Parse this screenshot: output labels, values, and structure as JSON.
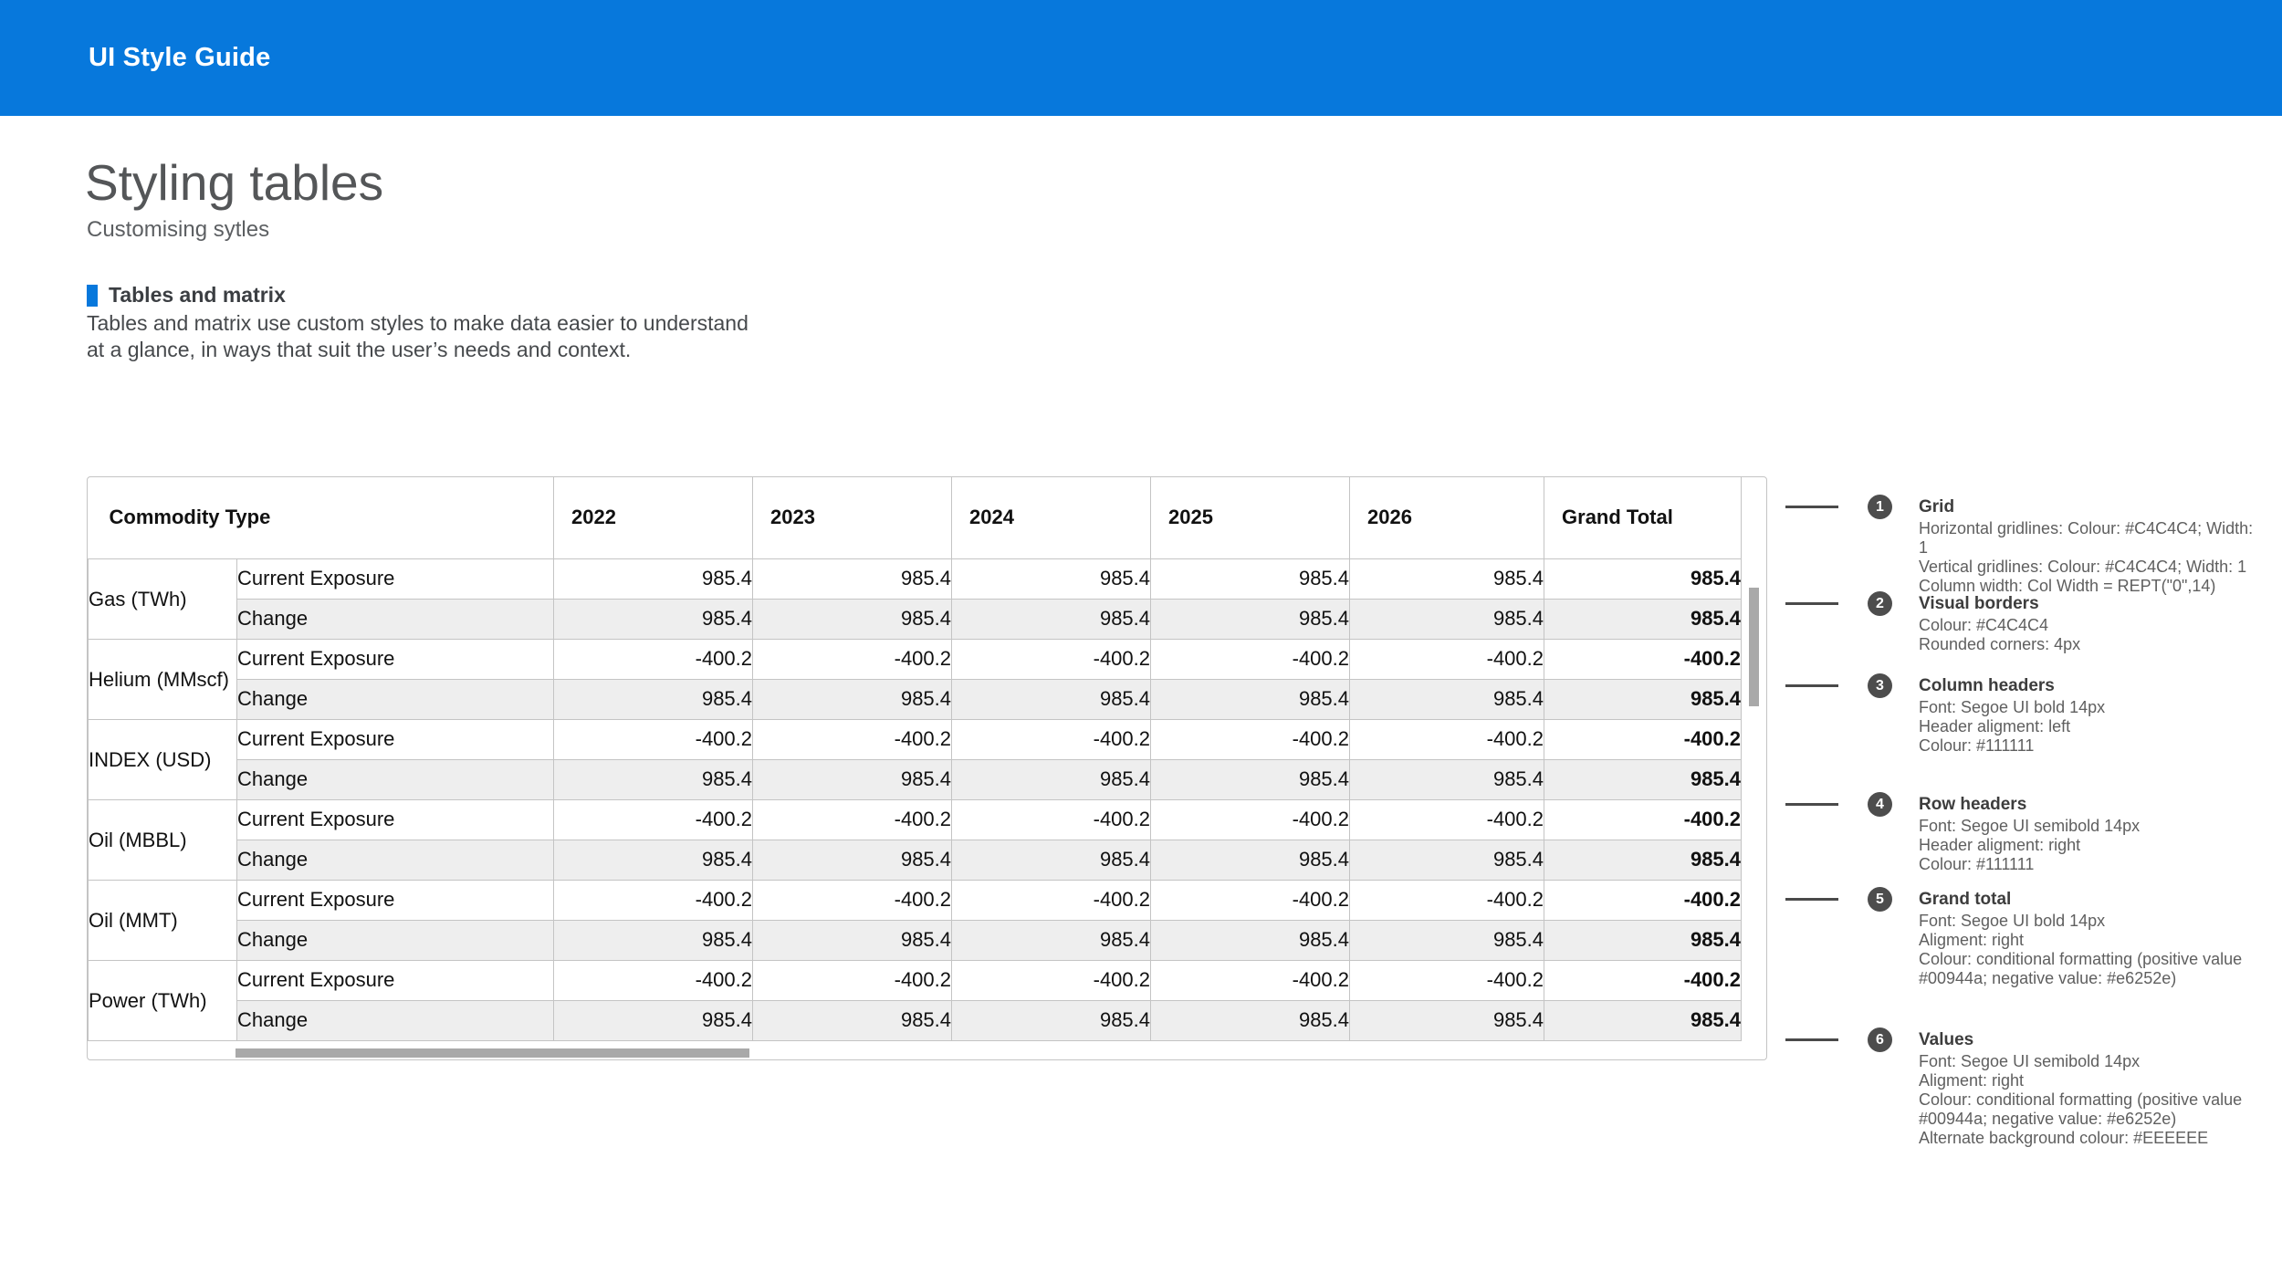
{
  "app": {
    "bar_title": "UI Style Guide"
  },
  "page": {
    "title": "Styling tables",
    "subtitle": "Customising sytles"
  },
  "section": {
    "heading": "Tables and matrix",
    "body": "Tables and matrix use custom styles to make data easier to understand at a glance, in ways that suit the user’s needs and context."
  },
  "colors": {
    "header_bar_blue": "#0778dc",
    "gridline": "#C4C4C4",
    "positive_value": "#00944a",
    "negative_value": "#e6252e",
    "alternate_row_background": "#EEEEEE",
    "header_text": "#111111"
  },
  "table": {
    "columns": [
      "Commodity Type",
      "2022",
      "2023",
      "2024",
      "2025",
      "2026",
      "Grand Total"
    ],
    "groups": [
      {
        "name": "Gas (TWh)",
        "rows": [
          {
            "metric": "Current Exposure",
            "values": [
              "985.4",
              "985.4",
              "985.4",
              "985.4",
              "985.4"
            ],
            "grand_total": "985.4",
            "negative": false
          },
          {
            "metric": "Change",
            "values": [
              "985.4",
              "985.4",
              "985.4",
              "985.4",
              "985.4"
            ],
            "grand_total": "985.4",
            "negative": false
          }
        ]
      },
      {
        "name": "Helium (MMscf)",
        "rows": [
          {
            "metric": "Current Exposure",
            "values": [
              "-400.2",
              "-400.2",
              "-400.2",
              "-400.2",
              "-400.2"
            ],
            "grand_total": "-400.2",
            "negative": true
          },
          {
            "metric": "Change",
            "values": [
              "985.4",
              "985.4",
              "985.4",
              "985.4",
              "985.4"
            ],
            "grand_total": "985.4",
            "negative": false
          }
        ]
      },
      {
        "name": "INDEX (USD)",
        "rows": [
          {
            "metric": "Current Exposure",
            "values": [
              "-400.2",
              "-400.2",
              "-400.2",
              "-400.2",
              "-400.2"
            ],
            "grand_total": "-400.2",
            "negative": true
          },
          {
            "metric": "Change",
            "values": [
              "985.4",
              "985.4",
              "985.4",
              "985.4",
              "985.4"
            ],
            "grand_total": "985.4",
            "negative": false
          }
        ]
      },
      {
        "name": "Oil (MBBL)",
        "rows": [
          {
            "metric": "Current Exposure",
            "values": [
              "-400.2",
              "-400.2",
              "-400.2",
              "-400.2",
              "-400.2"
            ],
            "grand_total": "-400.2",
            "negative": true
          },
          {
            "metric": "Change",
            "values": [
              "985.4",
              "985.4",
              "985.4",
              "985.4",
              "985.4"
            ],
            "grand_total": "985.4",
            "negative": false
          }
        ]
      },
      {
        "name": "Oil (MMT)",
        "rows": [
          {
            "metric": "Current Exposure",
            "values": [
              "-400.2",
              "-400.2",
              "-400.2",
              "-400.2",
              "-400.2"
            ],
            "grand_total": "-400.2",
            "negative": true
          },
          {
            "metric": "Change",
            "values": [
              "985.4",
              "985.4",
              "985.4",
              "985.4",
              "985.4"
            ],
            "grand_total": "985.4",
            "negative": false
          }
        ]
      },
      {
        "name": "Power (TWh)",
        "rows": [
          {
            "metric": "Current Exposure",
            "values": [
              "-400.2",
              "-400.2",
              "-400.2",
              "-400.2",
              "-400.2"
            ],
            "grand_total": "-400.2",
            "negative": true
          },
          {
            "metric": "Change",
            "values": [
              "985.4",
              "985.4",
              "985.4",
              "985.4",
              "985.4"
            ],
            "grand_total": "985.4",
            "negative": false
          }
        ]
      }
    ]
  },
  "annotations": [
    {
      "number": "1",
      "title": "Grid",
      "lines": [
        "Horizontal gridlines: Colour: #C4C4C4; Width: 1",
        "Vertical gridlines: Colour: #C4C4C4; Width: 1",
        "Column width: Col Width = REPT(\"0\",14)"
      ]
    },
    {
      "number": "2",
      "title": "Visual borders",
      "lines": [
        "Colour: #C4C4C4",
        "Rounded corners: 4px"
      ]
    },
    {
      "number": "3",
      "title": "Column headers",
      "lines": [
        "Font: Segoe UI bold 14px",
        "Header aligment: left",
        "Colour: #111111"
      ]
    },
    {
      "number": "4",
      "title": "Row headers",
      "lines": [
        "Font: Segoe UI semibold 14px",
        "Header aligment: right",
        "Colour: #111111"
      ]
    },
    {
      "number": "5",
      "title": "Grand total",
      "lines": [
        "Font: Segoe UI bold 14px",
        "Aligment: right",
        "Colour: conditional formatting (positive value",
        "#00944a; negative value: #e6252e)"
      ]
    },
    {
      "number": "6",
      "title": "Values",
      "lines": [
        "Font: Segoe UI semibold 14px",
        "Aligment: right",
        "Colour: conditional formatting (positive value",
        "#00944a; negative value: #e6252e)",
        "Alternate background colour: #EEEEEE"
      ]
    }
  ]
}
